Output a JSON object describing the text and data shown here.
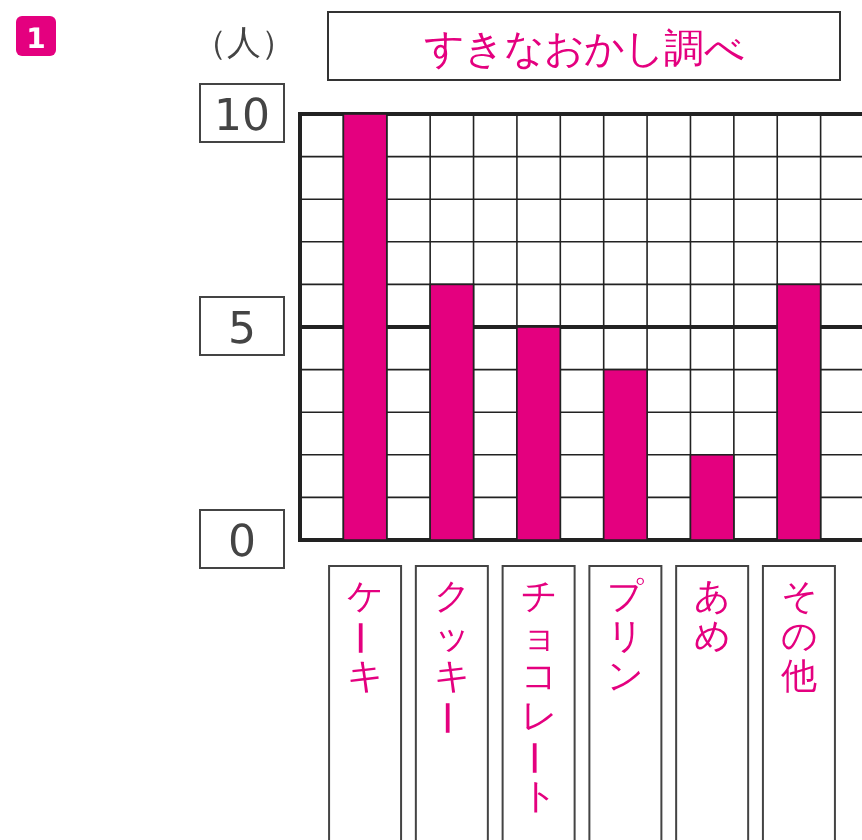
{
  "chart_data": {
    "type": "bar",
    "title": "すきなおかし調べ",
    "ylabel": "（人）",
    "categories": [
      "ケーキ",
      "クッキー",
      "チョコレート",
      "プリン",
      "あめ",
      "その他"
    ],
    "values": [
      10,
      6,
      5,
      4,
      2,
      6
    ],
    "color": "#e4007f",
    "ylim": [
      0,
      10
    ],
    "yticks": [
      0,
      {
        "value": 1,
        "label": null
      },
      {
        "value": 2,
        "label": null
      },
      {
        "value": 3,
        "label": null
      },
      {
        "value": 4,
        "label": null
      },
      5,
      {
        "value": 6,
        "label": null
      },
      {
        "value": 7,
        "label": null
      },
      {
        "value": 8,
        "label": null
      },
      {
        "value": 9,
        "label": null
      },
      10
    ],
    "grid": true,
    "ref_lines": [
      {
        "axis": "y",
        "value": 5
      }
    ],
    "annotations": [
      "1"
    ]
  }
}
